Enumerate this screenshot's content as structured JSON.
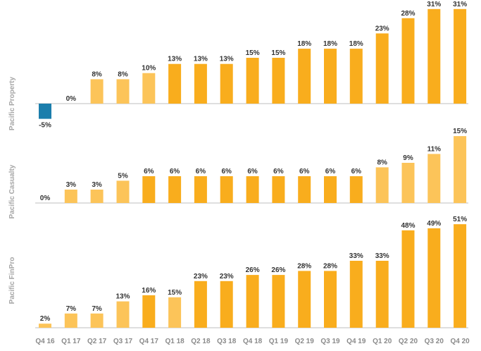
{
  "chart_data": {
    "type": "bar",
    "categories": [
      "Q4 16",
      "Q1 17",
      "Q2 17",
      "Q3 17",
      "Q4 17",
      "Q1 18",
      "Q2 18",
      "Q3 18",
      "Q4 18",
      "Q1 19",
      "Q2 19",
      "Q3 19",
      "Q4 19",
      "Q1 20",
      "Q2 20",
      "Q3 20",
      "Q4 20"
    ],
    "panels": [
      {
        "name": "Pacific Property",
        "values": [
          -5,
          0,
          8,
          8,
          10,
          13,
          13,
          13,
          15,
          15,
          18,
          18,
          18,
          23,
          28,
          31,
          31
        ],
        "labels": [
          "-5%",
          "0%",
          "8%",
          "8%",
          "10%",
          "13%",
          "13%",
          "13%",
          "15%",
          "15%",
          "18%",
          "18%",
          "18%",
          "23%",
          "28%",
          "31%",
          "31%"
        ]
      },
      {
        "name": "Pacific Casualty",
        "values": [
          0,
          3,
          3,
          5,
          6,
          6,
          6,
          6,
          6,
          6,
          6,
          6,
          6,
          8,
          9,
          11,
          15
        ],
        "labels": [
          "0%",
          "3%",
          "3%",
          "5%",
          "6%",
          "6%",
          "6%",
          "6%",
          "6%",
          "6%",
          "6%",
          "6%",
          "6%",
          "8%",
          "9%",
          "11%",
          "15%"
        ]
      },
      {
        "name": "Pacific FinPro",
        "values": [
          2,
          7,
          7,
          13,
          16,
          15,
          23,
          23,
          26,
          26,
          28,
          28,
          33,
          33,
          48,
          49,
          51
        ],
        "labels": [
          "2%",
          "7%",
          "7%",
          "13%",
          "16%",
          "15%",
          "23%",
          "23%",
          "26%",
          "26%",
          "28%",
          "28%",
          "33%",
          "33%",
          "48%",
          "49%",
          "51%"
        ]
      }
    ],
    "colors": {
      "negative": "#1b7eac",
      "light": "#fcc459",
      "dark": "#f9ad1d",
      "baseline": "#bfbfbf",
      "label": "#333333",
      "tick": "#8a8a8a",
      "panel_label": "#a6a6a6"
    },
    "color_pattern": [
      [
        "negative",
        "light",
        "light",
        "light",
        "light",
        "dark",
        "dark",
        "dark",
        "dark",
        "dark",
        "dark",
        "dark",
        "dark",
        "dark",
        "dark",
        "dark",
        "dark"
      ],
      [
        "light",
        "light",
        "light",
        "light",
        "dark",
        "dark",
        "dark",
        "dark",
        "dark",
        "dark",
        "dark",
        "dark",
        "dark",
        "light",
        "light",
        "light",
        "light"
      ],
      [
        "light",
        "light",
        "light",
        "light",
        "dark",
        "light",
        "dark",
        "dark",
        "dark",
        "dark",
        "dark",
        "dark",
        "dark",
        "dark",
        "dark",
        "dark",
        "dark"
      ]
    ],
    "unit": "%",
    "grid": false,
    "legend": "none"
  }
}
